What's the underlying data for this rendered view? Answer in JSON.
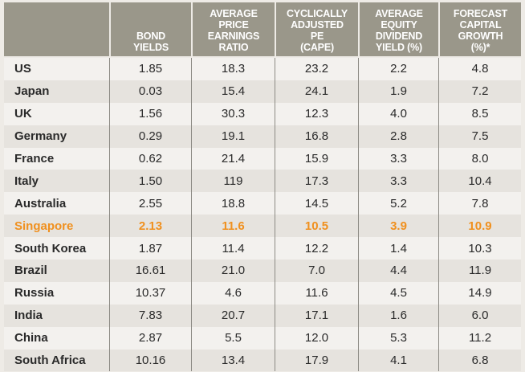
{
  "table": {
    "headers": [
      "",
      "BOND\nYIELDS",
      "AVERAGE\nPRICE\nEARNINGS\nRATIO",
      "CYCLICALLY\nADJUSTED\nPE\n(CAPE)",
      "AVERAGE\nEQUITY\nDIVIDEND\nYIELD (%)",
      "FORECAST\nCAPITAL\nGROWTH\n(%)*"
    ],
    "highlight_color": "#f0901e",
    "header_color": "#9a978a",
    "rows": [
      {
        "country": "US",
        "values": [
          "1.85",
          "18.3",
          "23.2",
          "2.2",
          "4.8"
        ]
      },
      {
        "country": "Japan",
        "values": [
          "0.03",
          "15.4",
          "24.1",
          "1.9",
          "7.2"
        ]
      },
      {
        "country": "UK",
        "values": [
          "1.56",
          "30.3",
          "12.3",
          "4.0",
          "8.5"
        ]
      },
      {
        "country": "Germany",
        "values": [
          "0.29",
          "19.1",
          "16.8",
          "2.8",
          "7.5"
        ]
      },
      {
        "country": "France",
        "values": [
          "0.62",
          "21.4",
          "15.9",
          "3.3",
          "8.0"
        ]
      },
      {
        "country": "Italy",
        "values": [
          "1.50",
          "119",
          "17.3",
          "3.3",
          "10.4"
        ]
      },
      {
        "country": "Australia",
        "values": [
          "2.55",
          "18.8",
          "14.5",
          "5.2",
          "7.8"
        ]
      },
      {
        "country": "Singapore",
        "values": [
          "2.13",
          "11.6",
          "10.5",
          "3.9",
          "10.9"
        ],
        "highlighted": true
      },
      {
        "country": "South Korea",
        "values": [
          "1.87",
          "11.4",
          "12.2",
          "1.4",
          "10.3"
        ]
      },
      {
        "country": "Brazil",
        "values": [
          "16.61",
          "21.0",
          "7.0",
          "4.4",
          "11.9"
        ]
      },
      {
        "country": "Russia",
        "values": [
          "10.37",
          "4.6",
          "11.6",
          "4.5",
          "14.9"
        ]
      },
      {
        "country": "India",
        "values": [
          "7.83",
          "20.7",
          "17.1",
          "1.6",
          "6.0"
        ]
      },
      {
        "country": "China",
        "values": [
          "2.87",
          "5.5",
          "12.0",
          "5.3",
          "11.2"
        ]
      },
      {
        "country": "South Africa",
        "values": [
          "10.16",
          "13.4",
          "17.9",
          "4.1",
          "6.8"
        ]
      }
    ]
  }
}
